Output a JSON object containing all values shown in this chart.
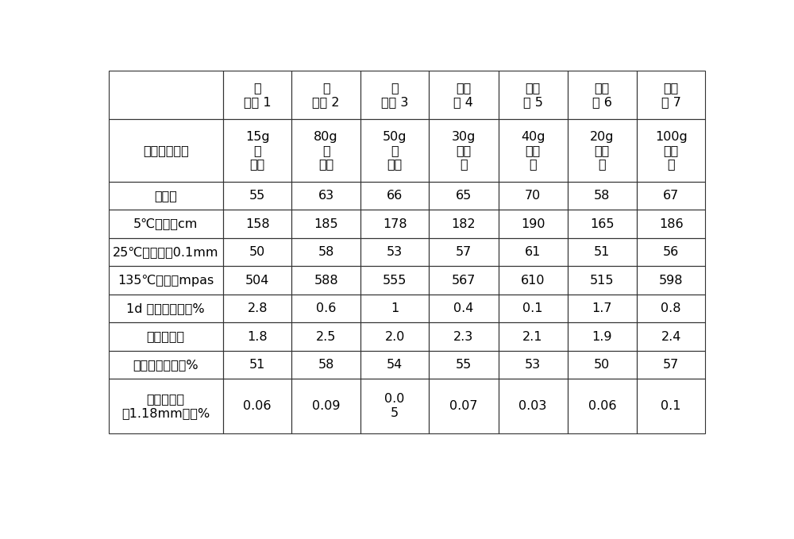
{
  "col_header_texts": [
    "实\n施例 1",
    "实\n施例 2",
    "实\n施例 3",
    "实施\n例 4",
    "实施\n例 5",
    "实施\n例 6",
    "实施\n例 7"
  ],
  "row_labels": [
    "改性剂添加量",
    "软化点",
    "5℃延度，cm",
    "25℃针入度，0.1mm",
    "135℃黏度，mpas",
    "1d 存储稳定性，%",
    "恩格拉粘度",
    "蔭发残留物含量%",
    "筛上剩余量\n（1.18mm），%"
  ],
  "modifier_cells": [
    "15g\n共\n混液",
    "80g\n共\n混液",
    "50g\n共\n混液",
    "30g\n共混\n液",
    "40g\n共混\n液",
    "20g\n共混\n液",
    "100g\n共混\n液"
  ],
  "data_rows": [
    [
      "55",
      "63",
      "66",
      "65",
      "70",
      "58",
      "67"
    ],
    [
      "158",
      "185",
      "178",
      "182",
      "190",
      "165",
      "186"
    ],
    [
      "50",
      "58",
      "53",
      "57",
      "61",
      "51",
      "56"
    ],
    [
      "504",
      "588",
      "555",
      "567",
      "610",
      "515",
      "598"
    ],
    [
      "2.8",
      "0.6",
      "1",
      "0.4",
      "0.1",
      "1.7",
      "0.8"
    ],
    [
      "1.8",
      "2.5",
      "2.0",
      "2.3",
      "2.1",
      "1.9",
      "2.4"
    ],
    [
      "51",
      "58",
      "54",
      "55",
      "53",
      "50",
      "57"
    ],
    [
      "0.06",
      "0.09",
      "0.0\n5",
      "0.07",
      "0.03",
      "0.06",
      "0.1"
    ]
  ],
  "bg_color": "#ffffff",
  "border_color": "#333333",
  "text_color": "#000000",
  "fontsize": 11.5
}
